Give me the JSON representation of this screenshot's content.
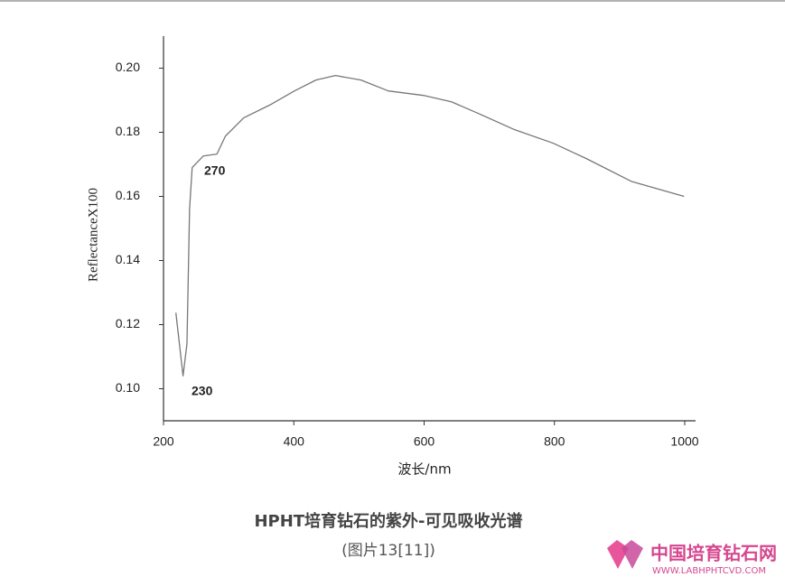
{
  "chart_data": {
    "type": "line",
    "x_label": "波长/nm",
    "y_label": "ReflectanceX100",
    "caption": "HPHT培育钻石的紫外-可见吸收光谱",
    "source": "(图片13[11])",
    "logo": {
      "name": "中国培育钻石网",
      "url": "WWW.LABHPHTCVD.COM"
    },
    "annotations": [
      "230",
      "270"
    ],
    "x": [
      219,
      230,
      236,
      240,
      244,
      261,
      282,
      295,
      323,
      365,
      401,
      434,
      464,
      503,
      545,
      599,
      642,
      683,
      739,
      798,
      849,
      918,
      999
    ],
    "series": [
      {
        "color": "#777777",
        "values": [
          0.1237,
          0.104,
          0.114,
          0.156,
          0.169,
          0.1726,
          0.1732,
          0.1788,
          0.1845,
          0.1887,
          0.1929,
          0.1963,
          0.1977,
          0.1963,
          0.1929,
          0.1915,
          0.1895,
          0.1859,
          0.1808,
          0.1766,
          0.1718,
          0.1647,
          0.16
        ]
      }
    ],
    "xlim": [
      200,
      1000
    ],
    "xticks": [
      200,
      400,
      600,
      800,
      1000
    ],
    "ylim": [
      0.09,
      0.21
    ],
    "yticks": [
      {
        "value": 0.1,
        "label": "0.10"
      },
      {
        "value": 0.12,
        "label": "0.12"
      },
      {
        "value": 0.14,
        "label": "0.14"
      },
      {
        "value": 0.16,
        "label": "0.16"
      },
      {
        "value": 0.18,
        "label": "0.18"
      },
      {
        "value": 0.2,
        "label": "0.20"
      }
    ]
  }
}
